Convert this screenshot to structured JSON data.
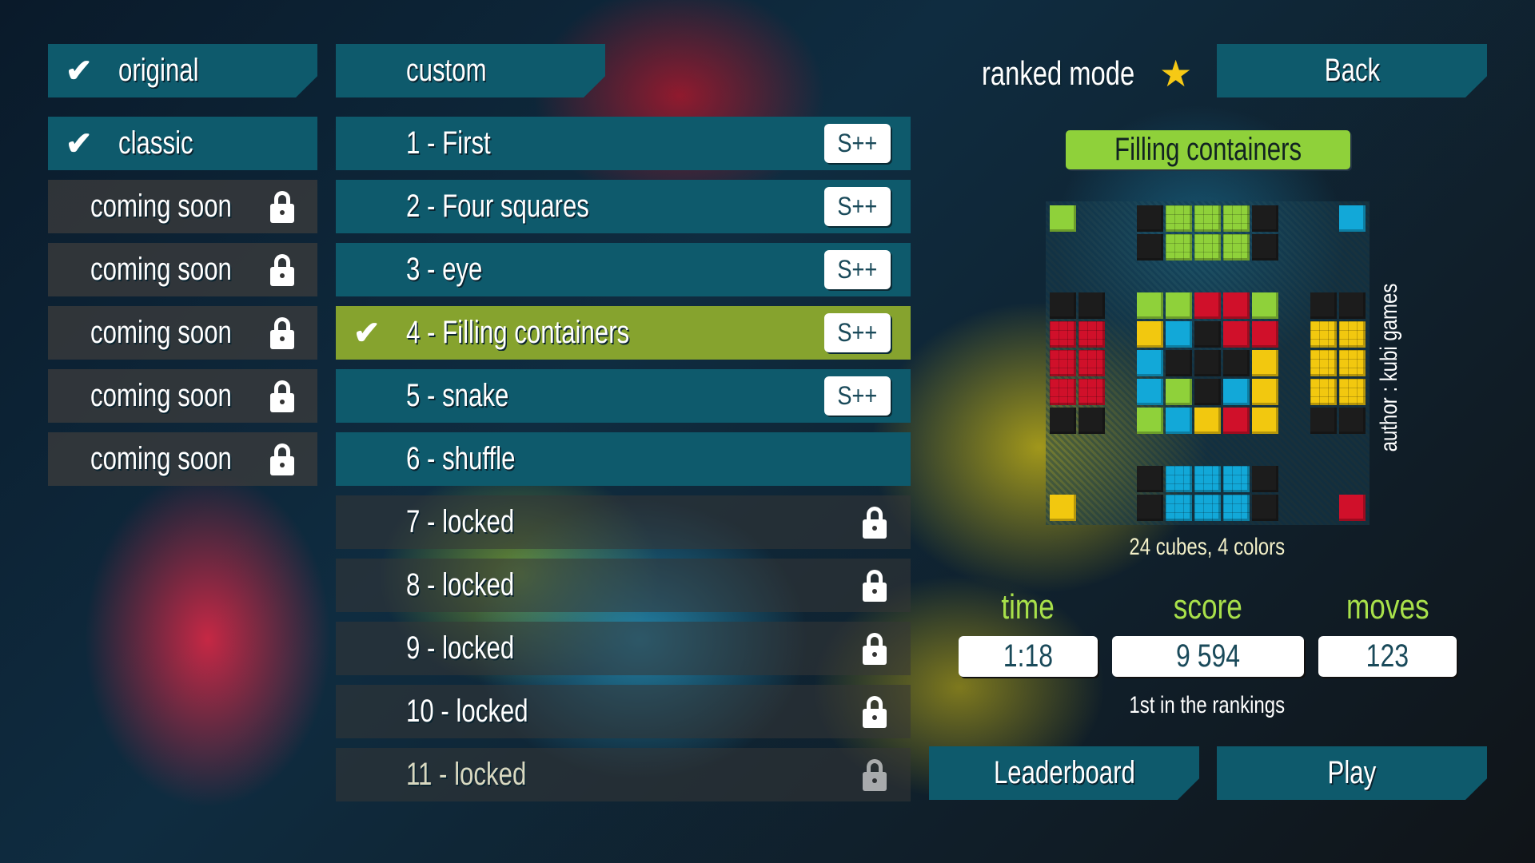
{
  "left": {
    "tabs": [
      {
        "label": "original",
        "checked": true
      }
    ],
    "items": [
      {
        "label": "classic",
        "checked": true,
        "locked": false
      },
      {
        "label": "coming soon",
        "locked": true
      },
      {
        "label": "coming soon",
        "locked": true
      },
      {
        "label": "coming soon",
        "locked": true
      },
      {
        "label": "coming soon",
        "locked": true
      },
      {
        "label": "coming soon",
        "locked": true
      }
    ]
  },
  "levels": {
    "tab": "custom",
    "items": [
      {
        "label": "1 - First",
        "rank": "S++",
        "state": "done"
      },
      {
        "label": "2 - Four squares",
        "rank": "S++",
        "state": "done"
      },
      {
        "label": "3 - eye",
        "rank": "S++",
        "state": "done"
      },
      {
        "label": "4 - Filling containers",
        "rank": "S++",
        "state": "selected"
      },
      {
        "label": "5 - snake",
        "rank": "S++",
        "state": "done"
      },
      {
        "label": "6 - shuffle",
        "state": "open"
      },
      {
        "label": "7 - locked",
        "state": "locked"
      },
      {
        "label": "8 - locked",
        "state": "locked"
      },
      {
        "label": "9 - locked",
        "state": "locked"
      },
      {
        "label": "10 - locked",
        "state": "locked"
      },
      {
        "label": "11 - locked",
        "state": "locked"
      }
    ]
  },
  "header": {
    "ranked_mode": "ranked mode",
    "back": "Back"
  },
  "preview": {
    "title": "Filling containers",
    "author": "author : kubi games",
    "info": "24 cubes, 4 colors",
    "grid": [
      "G..KgggK..B",
      "...KgggK...",
      "...........",
      "KK.GGRRG.KK",
      "rr.YBKRR.yy",
      "rr.BKKKY.yy",
      "rr.BGKBY.yy",
      "KK.GBYRY.KK",
      "...........",
      "...KbbbK...",
      "Y..KbbbK..R"
    ]
  },
  "stats": {
    "time_label": "time",
    "time": "1:18",
    "score_label": "score",
    "score": "9 594",
    "moves_label": "moves",
    "moves": "123",
    "ranking": "1st in the rankings"
  },
  "actions": {
    "leaderboard": "Leaderboard",
    "play": "Play"
  },
  "colors": {
    "teal": "#0e5a6c",
    "selected": "#86a32e",
    "green": "#8fd13a",
    "red": "#d0102a",
    "yellow": "#f2c80f",
    "blue": "#12a8d8",
    "black": "#1c1c1c",
    "label_green": "#a8e04a"
  }
}
